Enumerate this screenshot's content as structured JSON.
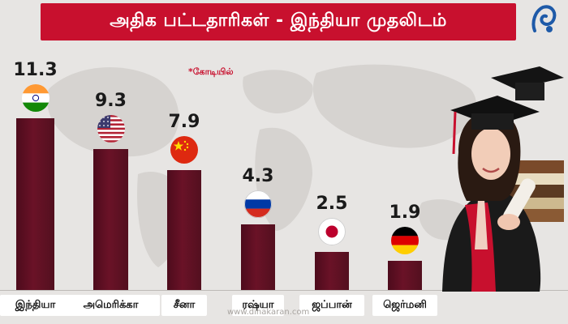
{
  "header": {
    "title": "அதிக பட்டதாரிகள் - இந்தியா முதலிடம்"
  },
  "note": "*கோடியில்",
  "watermark": "www.dinakaran.com",
  "chart_data": {
    "type": "bar",
    "title": "அதிக பட்டதாரிகள் - இந்தியா முதலிடம்",
    "categories": [
      "இந்தியா",
      "அமெரிக்கா",
      "சீனா",
      "ரஷ்யா",
      "ஜப்பான்",
      "ஜெர்மனி"
    ],
    "values": [
      11.3,
      9.3,
      7.9,
      4.3,
      2.5,
      1.9
    ],
    "value_labels": [
      "11.3",
      "9.3",
      "7.9",
      "4.3",
      "2.5",
      "1.9"
    ],
    "ylim": [
      0,
      12
    ],
    "grid": false,
    "legend": "none"
  },
  "flags": [
    "india-flag-icon",
    "usa-flag-icon",
    "china-flag-icon",
    "russia-flag-icon",
    "japan-flag-icon",
    "germany-flag-icon"
  ],
  "colors": {
    "banner": "#c8102e",
    "bar": "#5a0f22",
    "background": "#e7e5e3"
  }
}
